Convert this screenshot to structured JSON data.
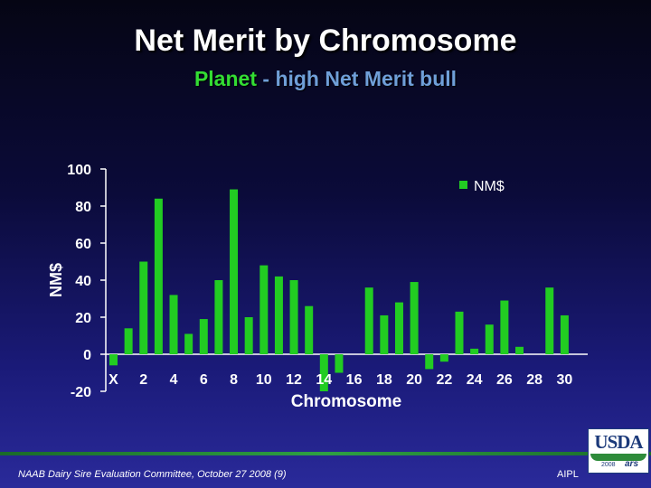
{
  "header": {
    "title": "Net Merit by Chromosome",
    "subtitle_part1": "Planet",
    "subtitle_sep": " - ",
    "subtitle_part2": "high Net Merit bull"
  },
  "footer": {
    "left_text": "NAAB Dairy Sire Evaluation Committee, October 27 2008 (9)",
    "right_text": "AIPL",
    "logo_text": "USDA",
    "logo_year": "2008",
    "logo_mark": "ars"
  },
  "colors": {
    "bar": "#22cc22",
    "axis": "#ffffff",
    "text": "#ffffff"
  },
  "chart_data": {
    "type": "bar",
    "title": "",
    "xlabel": "Chromosome",
    "ylabel": "NM$",
    "ylim": [
      -20,
      100
    ],
    "yticks": [
      100,
      80,
      60,
      40,
      20,
      0,
      -20
    ],
    "legend": "top-right",
    "grid": false,
    "categories": [
      "X",
      "1",
      "2",
      "3",
      "4",
      "5",
      "6",
      "7",
      "8",
      "9",
      "10",
      "11",
      "12",
      "13",
      "14",
      "15",
      "16",
      "17",
      "18",
      "19",
      "20",
      "21",
      "22",
      "23",
      "24",
      "25",
      "26",
      "27",
      "28",
      "29",
      "30"
    ],
    "xtick_labels": [
      "X",
      "2",
      "4",
      "6",
      "8",
      "10",
      "12",
      "14",
      "16",
      "18",
      "20",
      "22",
      "24",
      "26",
      "28",
      "30"
    ],
    "series": [
      {
        "name": "NM$",
        "values": [
          -6,
          14,
          50,
          84,
          32,
          11,
          19,
          40,
          89,
          20,
          48,
          42,
          40,
          26,
          -20,
          -10,
          0,
          36,
          21,
          28,
          39,
          -8,
          -4,
          23,
          3,
          16,
          29,
          4,
          0,
          36,
          21
        ]
      }
    ]
  }
}
